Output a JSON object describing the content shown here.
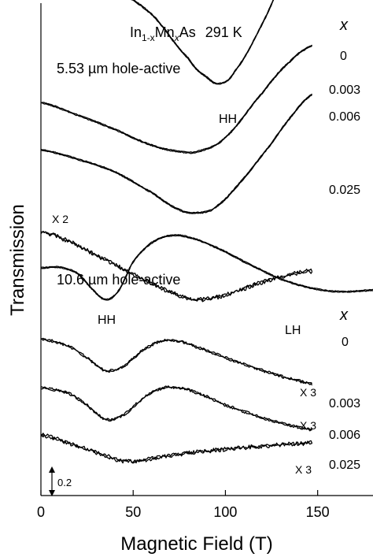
{
  "chart_data": {
    "type": "line",
    "title": "In1-xMnxAs  291 K",
    "title_parts": {
      "a": "In",
      "b": "1-x",
      "c": "Mn",
      "d": "x",
      "e": "As",
      "temp": "291 K"
    },
    "xlabel": "Magnetic Field (T)",
    "ylabel": "Transmission",
    "xlim": [
      0,
      180
    ],
    "x_ticks": [
      0,
      50,
      100,
      150
    ],
    "x_tick_labels": [
      "0",
      "50",
      "100",
      "150"
    ],
    "y_units": "arbitrary (offset traces)",
    "scale_bar_label": "0.2",
    "scale_bar_value": 0.2,
    "panels": [
      {
        "label": "5.53 µm  hole-active",
        "x_header": "x",
        "feature_labels": [
          "HH"
        ],
        "series": [
          {
            "name": "0",
            "multiplier": "",
            "points": [
              [
                0,
                1.0
              ],
              [
                20,
                0.97
              ],
              [
                40,
                0.93
              ],
              [
                60,
                0.78
              ],
              [
                80,
                0.5
              ],
              [
                90,
                0.38
              ],
              [
                97,
                0.34
              ],
              [
                105,
                0.42
              ],
              [
                120,
                0.72
              ],
              [
                135,
                1.1
              ],
              [
                147,
                1.38
              ]
            ]
          },
          {
            "name": "0.003",
            "multiplier": "",
            "points": [
              [
                0,
                0.22
              ],
              [
                20,
                0.14
              ],
              [
                40,
                0.05
              ],
              [
                60,
                -0.05
              ],
              [
                75,
                -0.09
              ],
              [
                85,
                -0.09
              ],
              [
                100,
                0.0
              ],
              [
                120,
                0.28
              ],
              [
                135,
                0.48
              ],
              [
                147,
                0.58
              ]
            ]
          },
          {
            "name": "0.006",
            "multiplier": "",
            "points": [
              [
                0,
                -0.08
              ],
              [
                20,
                -0.14
              ],
              [
                40,
                -0.22
              ],
              [
                60,
                -0.35
              ],
              [
                75,
                -0.46
              ],
              [
                85,
                -0.48
              ],
              [
                95,
                -0.44
              ],
              [
                110,
                -0.26
              ],
              [
                125,
                -0.04
              ],
              [
                137,
                0.15
              ],
              [
                147,
                0.27
              ]
            ]
          },
          {
            "name": "0.025",
            "multiplier": "X 2",
            "points": [
              [
                0,
                -0.6
              ],
              [
                15,
                -0.66
              ],
              [
                30,
                -0.75
              ],
              [
                50,
                -0.87
              ],
              [
                70,
                -0.98
              ],
              [
                85,
                -1.03
              ],
              [
                100,
                -1.0
              ],
              [
                120,
                -0.92
              ],
              [
                140,
                -0.86
              ],
              [
                147,
                -0.85
              ]
            ]
          }
        ]
      },
      {
        "label": "10.6 µm  hole-active",
        "x_header": "x",
        "feature_labels": [
          "HH",
          "LH"
        ],
        "series": [
          {
            "name": "0",
            "multiplier": "",
            "points": [
              [
                0,
                0.52
              ],
              [
                10,
                0.53
              ],
              [
                20,
                0.45
              ],
              [
                28,
                0.25
              ],
              [
                35,
                0.12
              ],
              [
                42,
                0.23
              ],
              [
                50,
                0.6
              ],
              [
                60,
                0.84
              ],
              [
                70,
                0.93
              ],
              [
                80,
                0.91
              ],
              [
                95,
                0.78
              ],
              [
                110,
                0.6
              ],
              [
                130,
                0.38
              ],
              [
                150,
                0.25
              ],
              [
                165,
                0.22
              ],
              [
                180,
                0.24
              ]
            ]
          },
          {
            "name": "0.003",
            "multiplier": "X 3",
            "points": [
              [
                0,
                -0.38
              ],
              [
                15,
                -0.47
              ],
              [
                25,
                -0.62
              ],
              [
                35,
                -0.78
              ],
              [
                45,
                -0.72
              ],
              [
                55,
                -0.53
              ],
              [
                65,
                -0.41
              ],
              [
                75,
                -0.41
              ],
              [
                85,
                -0.49
              ],
              [
                100,
                -0.62
              ],
              [
                120,
                -0.78
              ],
              [
                140,
                -0.91
              ],
              [
                147,
                -0.95
              ]
            ]
          },
          {
            "name": "0.006",
            "multiplier": "X 3",
            "points": [
              [
                0,
                -1.0
              ],
              [
                15,
                -1.07
              ],
              [
                25,
                -1.22
              ],
              [
                35,
                -1.4
              ],
              [
                45,
                -1.34
              ],
              [
                55,
                -1.14
              ],
              [
                65,
                -1.01
              ],
              [
                75,
                -1.0
              ],
              [
                85,
                -1.07
              ],
              [
                100,
                -1.22
              ],
              [
                120,
                -1.38
              ],
              [
                140,
                -1.5
              ],
              [
                147,
                -1.53
              ]
            ]
          },
          {
            "name": "0.025",
            "multiplier": "X 3",
            "points": [
              [
                0,
                -1.6
              ],
              [
                15,
                -1.7
              ],
              [
                30,
                -1.82
              ],
              [
                45,
                -1.93
              ],
              [
                60,
                -1.9
              ],
              [
                80,
                -1.83
              ],
              [
                100,
                -1.78
              ],
              [
                120,
                -1.74
              ],
              [
                140,
                -1.71
              ],
              [
                147,
                -1.7
              ]
            ]
          }
        ]
      }
    ],
    "grid": false,
    "legend": "none (series labelled by x values at right)"
  }
}
